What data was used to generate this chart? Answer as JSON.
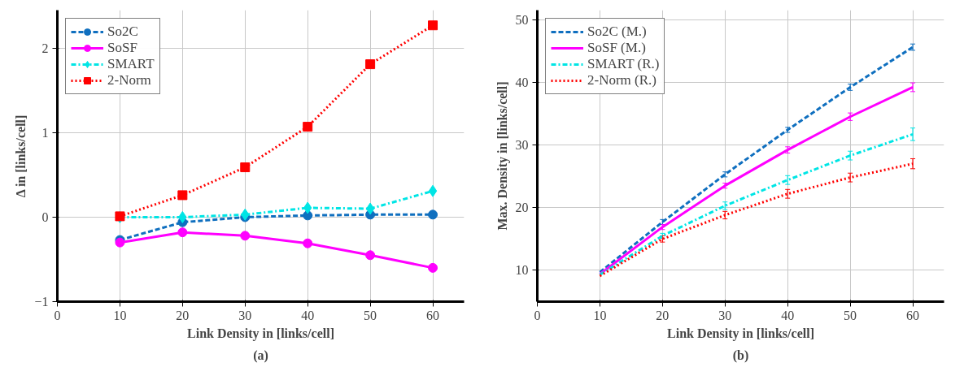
{
  "chart_data": [
    {
      "type": "line",
      "xlabel": "Link Density in [links/cell]",
      "ylabel": "Δ in [links/cell]",
      "x": [
        10,
        20,
        30,
        40,
        50,
        60
      ],
      "xlim": [
        0,
        65
      ],
      "ylim": [
        -1,
        2.45
      ],
      "xticks": [
        0,
        10,
        20,
        30,
        40,
        50,
        60
      ],
      "yticks": [
        {
          "value": -1,
          "label": "−1"
        },
        0,
        1,
        2
      ],
      "grid": true,
      "legend": "top left",
      "annotations": [
        "(a)"
      ],
      "series": [
        {
          "name": "So2C",
          "color": "#0f6fbf",
          "line_style": "dashed",
          "marker": "circle",
          "values": [
            -0.27,
            -0.06,
            0.0,
            0.02,
            0.03,
            0.03
          ]
        },
        {
          "name": "SoSF",
          "color": "#ff00ff",
          "line_style": "solid",
          "marker": "circle",
          "values": [
            -0.3,
            -0.18,
            -0.22,
            -0.31,
            -0.45,
            -0.6
          ]
        },
        {
          "name": "SMART",
          "color": "#00e5e5",
          "line_style": "dashdot",
          "marker": "diamond",
          "values": [
            0.0,
            0.0,
            0.03,
            0.11,
            0.1,
            0.31
          ]
        },
        {
          "name": "2-Norm",
          "color": "#ff0000",
          "line_style": "dotted",
          "marker": "square",
          "values": [
            0.01,
            0.26,
            0.59,
            1.07,
            1.81,
            2.27
          ]
        }
      ]
    },
    {
      "type": "line",
      "xlabel": "Link Density in [links/cell]",
      "ylabel": "Max. Density in [links/cell]",
      "x": [
        10,
        20,
        30,
        40,
        50,
        60
      ],
      "xlim": [
        0,
        65
      ],
      "ylim": [
        5,
        51.5
      ],
      "xticks": [
        0,
        10,
        20,
        30,
        40,
        50,
        60
      ],
      "yticks": [
        10,
        20,
        30,
        40,
        50
      ],
      "grid": true,
      "legend": "top left",
      "annotations": [
        "(b)"
      ],
      "series": [
        {
          "name": "So2C (M.)",
          "color": "#0f6fbf",
          "line_style": "dashed",
          "values": [
            9.7,
            17.7,
            25.3,
            32.4,
            39.2,
            45.6
          ],
          "errors": [
            null,
            0.4,
            0.4,
            0.4,
            0.5,
            0.5
          ]
        },
        {
          "name": "SoSF (M.)",
          "color": "#ff00ff",
          "line_style": "solid",
          "values": [
            9.4,
            16.9,
            23.5,
            29.2,
            34.5,
            39.2
          ],
          "errors": [
            null,
            0.4,
            0.4,
            0.5,
            0.6,
            0.7
          ]
        },
        {
          "name": "SMART (R.)",
          "color": "#00e5e5",
          "line_style": "dashdot",
          "values": [
            9.3,
            15.5,
            20.3,
            24.4,
            28.3,
            31.7
          ],
          "errors": [
            null,
            0.4,
            0.6,
            0.7,
            0.7,
            1.0
          ]
        },
        {
          "name": "2-Norm (R.)",
          "color": "#ff0000",
          "line_style": "dotted",
          "values": [
            9.1,
            15.0,
            18.8,
            22.2,
            24.8,
            27.0
          ],
          "errors": [
            null,
            0.5,
            0.6,
            0.7,
            0.7,
            0.8
          ]
        }
      ]
    }
  ]
}
